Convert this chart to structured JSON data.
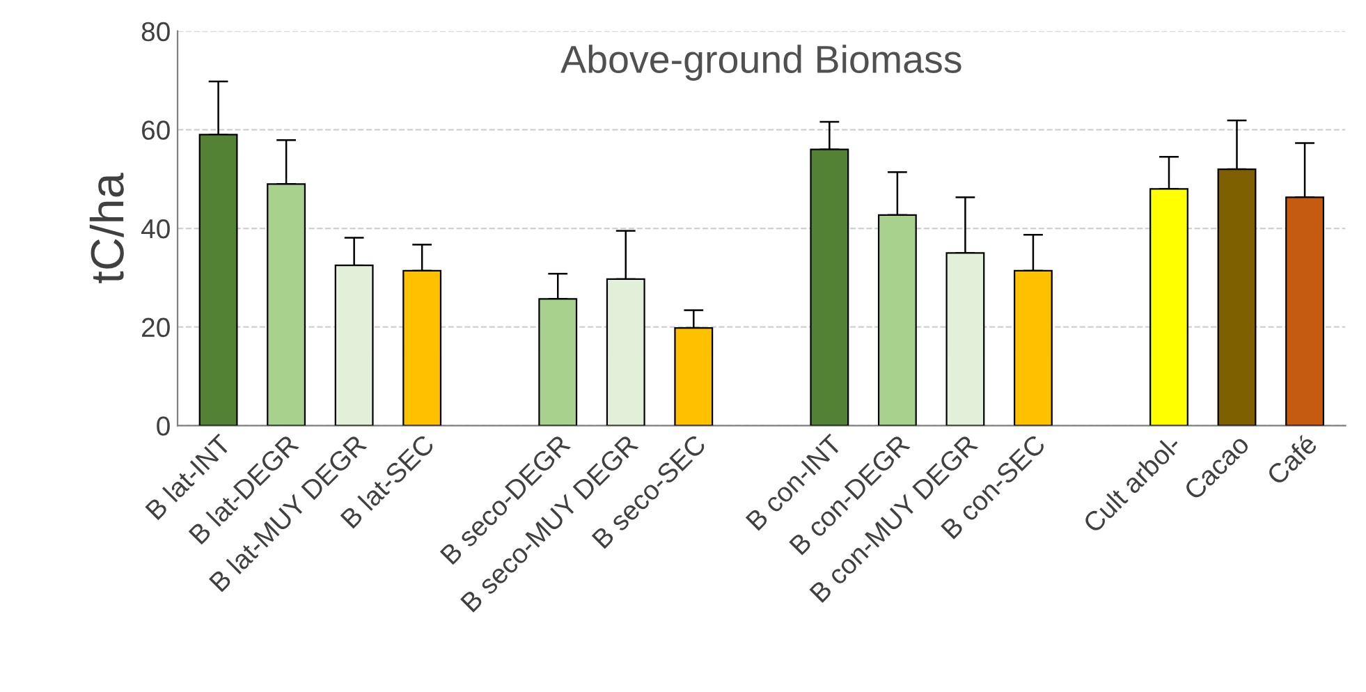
{
  "chart_data": {
    "type": "bar",
    "title": "Above-ground Biomass",
    "ylabel": "tC/ha",
    "categories": [
      "B lat-INT",
      "B lat-DEGR",
      "B lat-MUY DEGR",
      "B lat-SEC",
      null,
      "B seco-DEGR",
      "B seco-MUY DEGR",
      "B seco-SEC",
      null,
      "B con-INT",
      "B con-DEGR",
      "B con-MUY DEGR",
      "B con-SEC",
      null,
      "Cult arbol-",
      "Cacao",
      "Café"
    ],
    "values": [
      59,
      49,
      32.5,
      31.4,
      null,
      25.7,
      29.7,
      19.8,
      null,
      56,
      42.7,
      35,
      31.4,
      null,
      48,
      52,
      46.3
    ],
    "errors": [
      [
        59,
        69.8
      ],
      [
        49,
        57.9
      ],
      [
        32.5,
        38.1
      ],
      [
        31.4,
        36.7
      ],
      null,
      [
        25.7,
        30.8
      ],
      [
        29.7,
        39.5
      ],
      [
        19.8,
        23.4
      ],
      null,
      [
        56,
        61.6
      ],
      [
        42.7,
        51.4
      ],
      [
        35,
        46.3
      ],
      [
        31.4,
        38.7
      ],
      null,
      [
        48,
        54.5
      ],
      [
        52,
        61.9
      ],
      [
        46.3,
        57.3
      ]
    ],
    "colors": [
      "#548235",
      "#a9d18e",
      "#e2f0d9",
      "#ffc000",
      null,
      "#a9d18e",
      "#e2f0d9",
      "#ffc000",
      null,
      "#548235",
      "#a9d18e",
      "#e2f0d9",
      "#ffc000",
      null,
      "#ffff00",
      "#7f6000",
      "#c55a11"
    ],
    "ylim": [
      0,
      80
    ],
    "yticks": [
      0,
      20,
      40,
      60,
      80
    ],
    "grid": "y",
    "legend": false
  }
}
